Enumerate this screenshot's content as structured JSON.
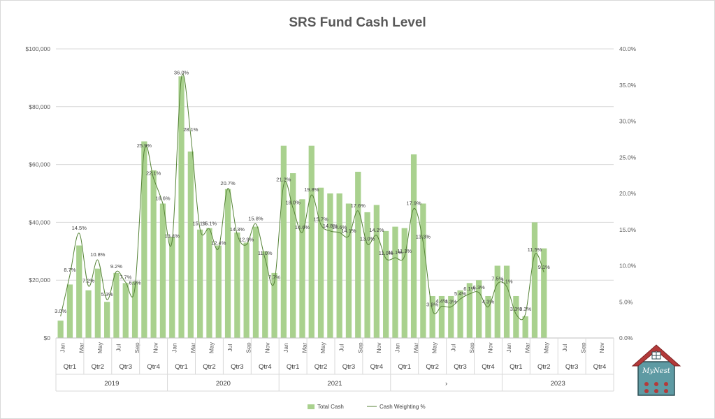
{
  "chart_data": {
    "type": "bar+line",
    "title": "SRS Fund Cash Level",
    "months": [
      "Jan",
      "",
      "Mar",
      "",
      "May",
      "",
      "Jul",
      "",
      "Sep",
      "",
      "Nov",
      ""
    ],
    "quarters": [
      "Qtr1",
      "Qtr2",
      "Qtr3",
      "Qtr4"
    ],
    "years": [
      "2019",
      "2020",
      "2021",
      "›",
      "2023"
    ],
    "left_axis": {
      "ticks": [
        "$0",
        "$20,000",
        "$40,000",
        "$60,000",
        "$80,000",
        "$100,000"
      ],
      "ylim": [
        0,
        100000
      ]
    },
    "right_axis": {
      "ticks": [
        "0.0%",
        "5.0%",
        "10.0%",
        "15.0%",
        "20.0%",
        "25.0%",
        "30.0%",
        "35.0%",
        "40.0%"
      ],
      "ylim": [
        0,
        40
      ]
    },
    "series": [
      {
        "name": "Total Cash",
        "color": "#a9d18e",
        "values": [
          6000,
          18500,
          32000,
          16500,
          24000,
          12500,
          22500,
          19000,
          19500,
          68000,
          58000,
          46500,
          35000,
          90500,
          64500,
          37500,
          38000,
          32000,
          51500,
          36500,
          33000,
          38500,
          30000,
          22500,
          66500,
          57000,
          48000,
          66500,
          52000,
          50000,
          50000,
          46500,
          57500,
          43500,
          46000,
          37000,
          38500,
          38000,
          63500,
          46500,
          14500,
          14500,
          14500,
          16500,
          19000,
          20000,
          14500,
          25000,
          25000,
          14500,
          7500,
          40000,
          31000,
          null,
          null,
          null,
          null,
          null,
          null,
          null
        ]
      },
      {
        "name": "Cash Weighting %",
        "color": "#548235",
        "values": [
          3.0,
          8.7,
          14.5,
          7.2,
          10.8,
          5.3,
          9.2,
          7.7,
          6.9,
          25.9,
          22.1,
          18.6,
          13.4,
          36.0,
          28.1,
          15.1,
          15.1,
          12.4,
          20.7,
          14.3,
          12.9,
          15.8,
          11.0,
          7.7,
          21.2,
          18.0,
          14.6,
          19.8,
          15.7,
          14.8,
          14.6,
          14.1,
          17.6,
          13.0,
          14.2,
          11.0,
          11.1,
          11.3,
          17.9,
          13.3,
          3.9,
          4.4,
          4.3,
          5.4,
          6.1,
          6.3,
          4.3,
          7.5,
          7.1,
          3.3,
          3.3,
          11.5,
          9.1,
          null,
          null,
          null,
          null,
          null,
          null,
          null
        ],
        "labels": [
          "3.0%",
          "8.7%",
          "14.5%",
          "7.2%",
          "10.8%",
          "5.3%",
          "9.2%",
          "7.7%",
          "6.9%",
          "25.9%",
          "22.1%",
          "18.6%",
          "13.4%",
          "36.0%",
          "28.1%",
          "15.1%",
          "15.1%",
          "12.4%",
          "20.7%",
          "14.3%",
          "12.9%",
          "15.8%",
          "11.0%",
          "7.7%",
          "21.2%",
          "18.0%",
          "14.6%",
          "19.8%",
          "15.7%",
          "14.8%",
          "14.6%",
          "14.1%",
          "17.6%",
          "13.0%",
          "14.2%",
          "11.0%",
          "11.1%",
          "11.3%",
          "17.9%",
          "13.3%",
          "3.9%",
          "4.4%",
          "4.3%",
          "5.4%",
          "6.1%",
          "6.3%",
          "4.3%",
          "7.5%",
          "7.1%",
          "3.3%",
          "3.3%",
          "11.5%",
          "9.1%",
          "",
          "",
          "",
          "",
          "",
          "",
          ""
        ]
      }
    ],
    "legend_position": "bottom",
    "gridlines": true
  },
  "logo": {
    "text": "MyNest",
    "roof_color": "#b33a3a",
    "wall_color": "#5e9aa3"
  }
}
